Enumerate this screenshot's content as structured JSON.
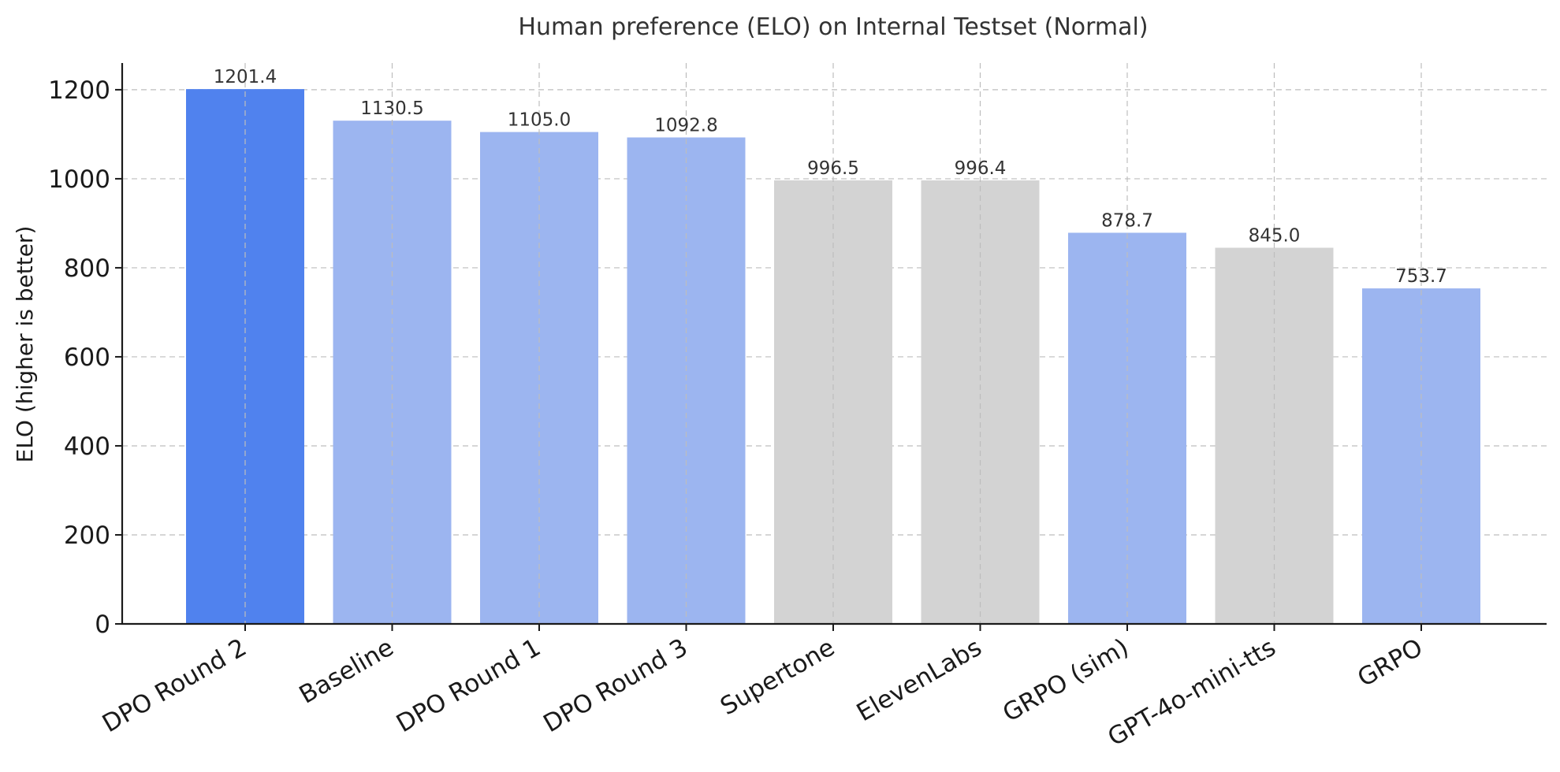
{
  "chart_data": {
    "type": "bar",
    "title": "Human preference (ELO) on Internal Testset (Normal)",
    "xlabel": "",
    "ylabel": "ELO (higher is better)",
    "ylim": [
      0,
      1260
    ],
    "yticks": [
      0,
      200,
      400,
      600,
      800,
      1000,
      1200
    ],
    "ytick_labels": [
      "0",
      "200",
      "400",
      "600",
      "800",
      "1000",
      "1200"
    ],
    "grid": true,
    "categories": [
      "DPO Round 2",
      "Baseline",
      "DPO Round 1",
      "DPO Round 3",
      "Supertone",
      "ElevenLabs",
      "GRPO (sim)",
      "GPT-4o-mini-tts",
      "GRPO"
    ],
    "values": [
      1201.4,
      1130.5,
      1105.0,
      1092.8,
      996.5,
      996.4,
      878.7,
      845.0,
      753.7
    ],
    "value_labels": [
      "1201.4",
      "1130.5",
      "1105.0",
      "1092.8",
      "996.5",
      "996.4",
      "878.7",
      "845.0",
      "753.7"
    ],
    "bar_colors": [
      "#5082ee",
      "#9cb5f0",
      "#9cb5f0",
      "#9cb5f0",
      "#d3d3d3",
      "#d3d3d3",
      "#9cb5f0",
      "#d3d3d3",
      "#9cb5f0"
    ]
  }
}
